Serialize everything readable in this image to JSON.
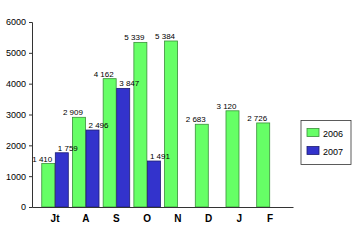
{
  "chart_data": {
    "type": "bar",
    "categories": [
      "Jt",
      "A",
      "S",
      "O",
      "N",
      "D",
      "J",
      "F"
    ],
    "series": [
      {
        "name": "2006",
        "color": "#66ff66",
        "values": [
          1410,
          2909,
          4162,
          5339,
          5384,
          2683,
          3120,
          2726
        ],
        "value_labels": [
          "1 410",
          "2 909",
          "4 162",
          "5 339",
          "5 384",
          "2 683",
          "3 120",
          "2 726"
        ]
      },
      {
        "name": "2007",
        "color": "#3333cc",
        "values": [
          1759,
          2496,
          3847,
          1491,
          null,
          null,
          null,
          null
        ],
        "value_labels": [
          "1 759",
          "2 496",
          "3 847",
          "1 491",
          null,
          null,
          null,
          null
        ]
      }
    ],
    "ylim": [
      0,
      6000
    ],
    "yticks": [
      0,
      1000,
      2000,
      3000,
      4000,
      5000,
      6000
    ],
    "grid": false,
    "legend": "right",
    "data_labels": true
  }
}
